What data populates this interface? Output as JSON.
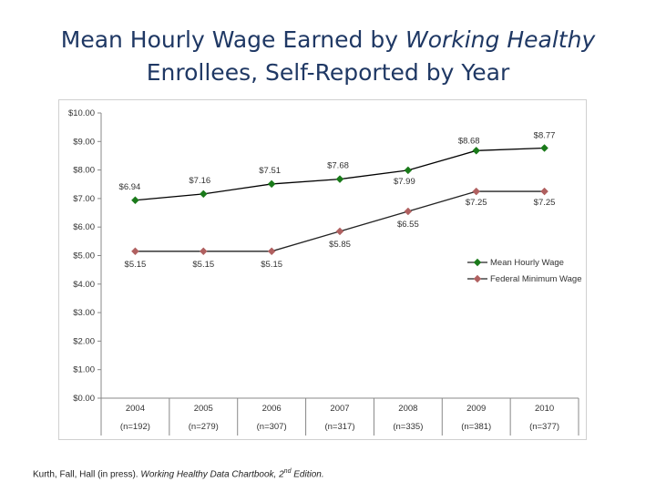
{
  "slide": {
    "title_part1": "Mean Hourly Wage Earned by ",
    "title_italic": "Working Healthy",
    "title_part2": "Enrollees, Self-Reported by Year"
  },
  "citation": {
    "authors": "Kurth, Fall, Hall (in press). ",
    "book": "Working Healthy Data Chartbook, ",
    "edition_num": "2",
    "edition_sup": "nd",
    "edition_rest": " Edition."
  },
  "chart_data": {
    "type": "line",
    "categories": [
      "2004",
      "2005",
      "2006",
      "2007",
      "2008",
      "2009",
      "2010"
    ],
    "sample_sizes": [
      "(n=192)",
      "(n=279)",
      "(n=307)",
      "(n=317)",
      "(n=335)",
      "(n=381)",
      "(n=377)"
    ],
    "ylim": [
      0,
      10
    ],
    "ytick_labels": [
      "$0.00",
      "$1.00",
      "$2.00",
      "$3.00",
      "$4.00",
      "$5.00",
      "$6.00",
      "$7.00",
      "$8.00",
      "$9.00",
      "$10.00"
    ],
    "grid": false,
    "legend_position": "right",
    "series": [
      {
        "name": "Mean Hourly Wage",
        "color": "#1a7a1a",
        "marker": "diamond",
        "values": [
          6.94,
          7.16,
          7.51,
          7.68,
          7.99,
          8.68,
          8.77
        ],
        "labels": [
          "$6.94",
          "$7.16",
          "$7.51",
          "$7.68",
          "$7.99",
          "$8.68",
          "$8.77"
        ]
      },
      {
        "name": "Federal Minimum Wage",
        "color": "#b06060",
        "marker": "diamond",
        "values": [
          5.15,
          5.15,
          5.15,
          5.85,
          6.55,
          7.25,
          7.25
        ],
        "labels": [
          "$5.15",
          "$5.15",
          "$5.15",
          "$5.85",
          "$6.55",
          "$7.25",
          "$7.25"
        ]
      }
    ]
  }
}
